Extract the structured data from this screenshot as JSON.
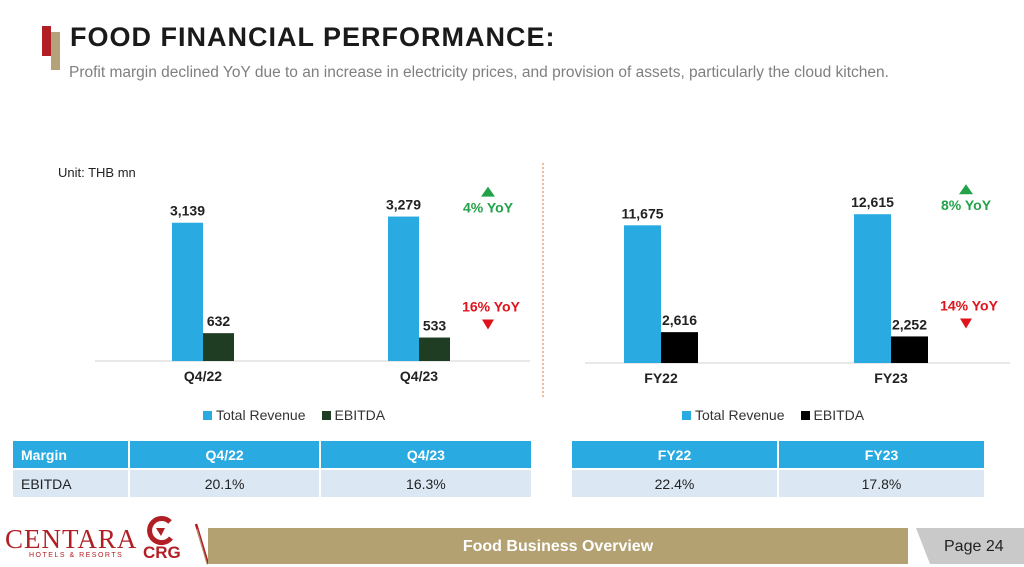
{
  "header": {
    "title": "FOOD FINANCIAL PERFORMANCE:",
    "subtitle": "Profit margin declined YoY due to an increase in electricity prices, and provision of assets, particularly the cloud kitchen."
  },
  "unit_label": "Unit: THB mn",
  "colors": {
    "revenue": "#29abe2",
    "ebitda_quarter": "#1e3d22",
    "ebitda_year": "#000000",
    "up": "#22a34a",
    "down": "#e0131c",
    "accent_red": "#b11e24",
    "accent_gold": "#b3a172"
  },
  "chart_data": [
    {
      "type": "bar",
      "categories": [
        "Q4/22",
        "Q4/23"
      ],
      "series": [
        {
          "name": "Total Revenue",
          "values": [
            3139,
            3279
          ],
          "labels": [
            "3,139",
            "3,279"
          ]
        },
        {
          "name": "EBITDA",
          "values": [
            632,
            533
          ],
          "labels": [
            "632",
            "533"
          ]
        }
      ],
      "annotations": [
        {
          "text": "4% YoY",
          "direction": "up",
          "series": "Total Revenue"
        },
        {
          "text": "16% YoY",
          "direction": "down",
          "series": "EBITDA"
        }
      ],
      "ylim": [
        0,
        4200
      ]
    },
    {
      "type": "bar",
      "categories": [
        "FY22",
        "FY23"
      ],
      "series": [
        {
          "name": "Total Revenue",
          "values": [
            11675,
            12615
          ],
          "labels": [
            "11,675",
            "12,615"
          ]
        },
        {
          "name": "EBITDA",
          "values": [
            2616,
            2252
          ],
          "labels": [
            "2,616",
            "2,252"
          ]
        }
      ],
      "annotations": [
        {
          "text": "8% YoY",
          "direction": "up",
          "series": "Total Revenue"
        },
        {
          "text": "14% YoY",
          "direction": "down",
          "series": "EBITDA"
        }
      ],
      "ylim": [
        0,
        15600
      ]
    }
  ],
  "legend": {
    "revenue": "Total Revenue",
    "ebitda": "EBITDA"
  },
  "margin_tables": {
    "quarterly": {
      "headers": [
        "Margin",
        "Q4/22",
        "Q4/23"
      ],
      "row_label": "EBITDA",
      "values": [
        "20.1%",
        "16.3%"
      ]
    },
    "annual": {
      "headers": [
        "FY22",
        "FY23"
      ],
      "values": [
        "22.4%",
        "17.8%"
      ]
    }
  },
  "footer": {
    "brand": "CENTARA",
    "brand_sub": "HOTELS & RESORTS",
    "brand2": "CRG",
    "section": "Food Business Overview",
    "page": "Page 24"
  }
}
